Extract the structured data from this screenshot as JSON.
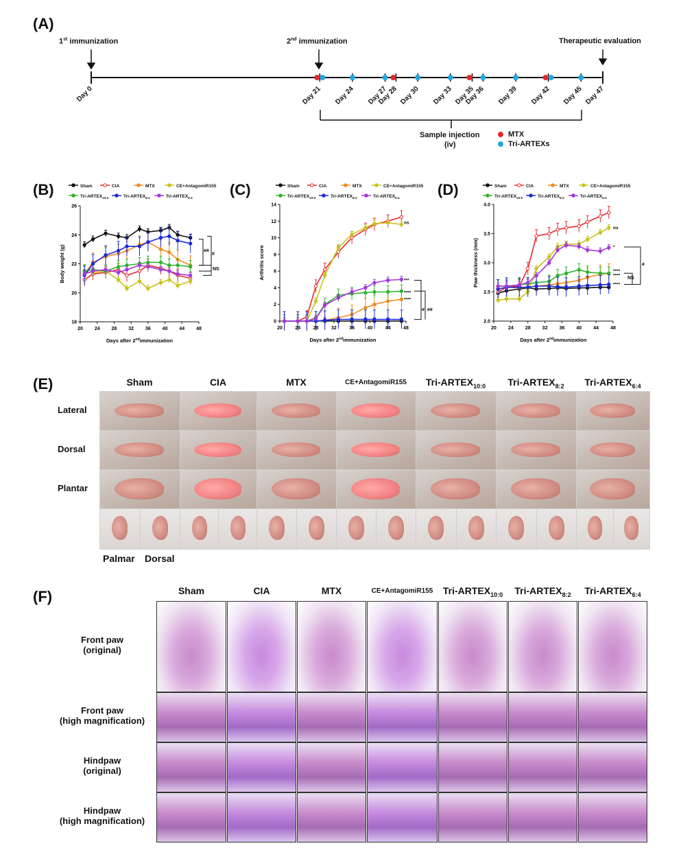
{
  "panels": {
    "a": "(A)",
    "b": "(B)",
    "c": "(C)",
    "d": "(D)",
    "e": "(E)",
    "f": "(F)"
  },
  "timeline": {
    "first_immunization_pre": "1",
    "first_immunization_sup": "st",
    "first_immunization_post": " immunization",
    "second_immunization_pre": "2",
    "second_immunization_sup": "nd",
    "second_immunization_post": " immunization",
    "therapeutic": "Therapeutic evaluation",
    "days": [
      "Day 0",
      "Day 21",
      "Day 24",
      "Day 27",
      "Day 28",
      "Day 30",
      "Day 33",
      "Day 35",
      "Day 36",
      "Day 39",
      "Day 42",
      "Day 45",
      "Day 47"
    ],
    "sample_injection": "Sample injection",
    "iv": "(iv)",
    "legend_mtx": "MTX",
    "legend_tri": "Tri-ARTEXs",
    "mtx_days": [
      21,
      28,
      35,
      42
    ],
    "tri_days": [
      21,
      24,
      27,
      30,
      33,
      36,
      39,
      42,
      45
    ],
    "colors": {
      "mtx": "#e8262b",
      "tri": "#1fa9e1"
    }
  },
  "legend_groups": [
    {
      "name": "Sham",
      "color": "#111111"
    },
    {
      "name": "CIA",
      "color": "#e8262b"
    },
    {
      "name": "MTX",
      "color": "#f28a21"
    },
    {
      "name": "CE+AntagomiR155",
      "color": "#c8c21e"
    },
    {
      "name": "Tri-ARTEX",
      "sub": "10:0",
      "color": "#2fb52f"
    },
    {
      "name": "Tri-ARTEX",
      "sub": "8:2",
      "color": "#1a2bd6"
    },
    {
      "name": "Tri-ARTEX",
      "sub": "6:4",
      "color": "#a537d8"
    }
  ],
  "chart_data": [
    {
      "type": "line",
      "panel": "B",
      "ylabel": "Body weight (g)",
      "xlabel_pre": "Days after 2",
      "xlabel_sup": "nd",
      "xlabel_post": "immunization",
      "xlim": [
        20,
        48
      ],
      "ylim": [
        18,
        26
      ],
      "xticks": [
        20,
        24,
        28,
        32,
        36,
        40,
        44,
        48
      ],
      "yticks": [
        18,
        20,
        22,
        24,
        26
      ],
      "x": [
        21,
        23,
        26,
        29,
        31,
        34,
        36,
        39,
        41,
        43,
        46
      ],
      "series": [
        {
          "name": "Sham",
          "values": [
            23.3,
            23.7,
            24.1,
            23.9,
            23.8,
            24.4,
            24.2,
            24.3,
            24.5,
            24.0,
            23.8
          ]
        },
        {
          "name": "CIA",
          "values": [
            20.9,
            21.3,
            21.4,
            21.6,
            21.2,
            21.5,
            21.9,
            21.7,
            21.5,
            21.2,
            21.0
          ]
        },
        {
          "name": "MTX",
          "values": [
            21.3,
            22.1,
            22.5,
            22.7,
            22.9,
            23.3,
            23.5,
            23.0,
            22.8,
            22.3,
            21.9
          ]
        },
        {
          "name": "CE+AntagomiR155",
          "values": [
            21.4,
            21.4,
            21.5,
            20.9,
            20.3,
            20.8,
            20.3,
            20.7,
            20.9,
            20.5,
            20.8
          ]
        },
        {
          "name": "Tri-ARTEX10:0",
          "values": [
            21.5,
            21.6,
            21.5,
            21.8,
            21.9,
            22.0,
            22.1,
            22.1,
            21.9,
            21.9,
            21.8
          ]
        },
        {
          "name": "Tri-ARTEX8:2",
          "values": [
            21.2,
            22.0,
            22.6,
            22.9,
            23.2,
            23.2,
            23.5,
            23.8,
            23.9,
            23.6,
            23.4
          ]
        },
        {
          "name": "Tri-ARTEX6:4",
          "values": [
            21.3,
            21.5,
            21.6,
            21.4,
            21.6,
            21.9,
            21.8,
            21.6,
            21.5,
            21.3,
            21.2
          ]
        }
      ],
      "annotations": [
        "##",
        "#",
        "NS"
      ]
    },
    {
      "type": "line",
      "panel": "C",
      "ylabel": "Arthritis score",
      "xlabel_pre": "Days after 2",
      "xlabel_sup": "nd",
      "xlabel_post": "immunization",
      "xlim": [
        20,
        48
      ],
      "ylim": [
        0,
        14
      ],
      "xticks": [
        20,
        24,
        28,
        32,
        36,
        40,
        44,
        48
      ],
      "yticks": [
        0,
        2,
        4,
        6,
        8,
        10,
        12,
        14
      ],
      "x": [
        21,
        24,
        26,
        28,
        30,
        33,
        36,
        39,
        41,
        44,
        47
      ],
      "series": [
        {
          "name": "Sham",
          "values": [
            0,
            0,
            0,
            0,
            0,
            0,
            0,
            0,
            0,
            0,
            0
          ]
        },
        {
          "name": "CIA",
          "values": [
            0,
            0,
            0.5,
            4.2,
            6.2,
            8.3,
            10.0,
            11.0,
            11.6,
            12.0,
            12.5
          ]
        },
        {
          "name": "MTX",
          "values": [
            0,
            0,
            0,
            0,
            0.1,
            0.4,
            0.8,
            1.6,
            2.0,
            2.4,
            2.6
          ]
        },
        {
          "name": "CE+AntagomiR155",
          "values": [
            0,
            0,
            0,
            2.4,
            5.5,
            8.8,
            10.4,
            11.2,
            11.7,
            11.8,
            11.6
          ]
        },
        {
          "name": "Tri-ARTEX10:0",
          "values": [
            0,
            0,
            0,
            0.4,
            2.0,
            3.1,
            3.3,
            3.4,
            3.5,
            3.5,
            3.6
          ]
        },
        {
          "name": "Tri-ARTEX8:2",
          "values": [
            0,
            0,
            0,
            0,
            0.1,
            0.2,
            0.2,
            0.2,
            0.2,
            0.2,
            0.2
          ]
        },
        {
          "name": "Tri-ARTEX6:4",
          "values": [
            0,
            0,
            0,
            0.3,
            1.9,
            2.8,
            3.5,
            4.0,
            4.6,
            4.9,
            5.0
          ]
        }
      ],
      "annotations": [
        "ns",
        "***",
        "****",
        "****",
        "#",
        "##"
      ]
    },
    {
      "type": "line",
      "panel": "D",
      "ylabel": "Paw thickness (mm)",
      "xlabel_pre": "Days after 2",
      "xlabel_sup": "nd",
      "xlabel_post": "immunization",
      "xlim": [
        20,
        48
      ],
      "ylim": [
        2.0,
        4.0
      ],
      "xticks": [
        20,
        24,
        28,
        32,
        36,
        40,
        44,
        48
      ],
      "yticks": [
        2.0,
        2.5,
        3.0,
        3.5,
        4.0
      ],
      "yticklabels": [
        "2.0",
        "2.5",
        "3.0",
        "3.5",
        "4.0"
      ],
      "x": [
        21,
        23,
        26,
        28,
        30,
        33,
        35,
        37,
        40,
        42,
        45,
        47
      ],
      "series": [
        {
          "name": "Sham",
          "values": [
            2.48,
            2.52,
            2.55,
            2.57,
            2.55,
            2.56,
            2.57,
            2.56,
            2.57,
            2.57,
            2.58,
            2.58
          ]
        },
        {
          "name": "CIA",
          "values": [
            2.5,
            2.58,
            2.6,
            2.9,
            3.46,
            3.5,
            3.57,
            3.6,
            3.63,
            3.7,
            3.8,
            3.86
          ]
        },
        {
          "name": "MTX",
          "values": [
            2.55,
            2.58,
            2.57,
            2.58,
            2.6,
            2.62,
            2.64,
            2.66,
            2.7,
            2.75,
            2.8,
            2.82
          ]
        },
        {
          "name": "CE+AntagomiR155",
          "values": [
            2.36,
            2.38,
            2.38,
            2.5,
            2.9,
            3.1,
            3.28,
            3.32,
            3.32,
            3.4,
            3.52,
            3.6
          ]
        },
        {
          "name": "Tri-ARTEX10:0",
          "values": [
            2.6,
            2.6,
            2.62,
            2.64,
            2.66,
            2.68,
            2.78,
            2.82,
            2.88,
            2.84,
            2.82,
            2.82
          ]
        },
        {
          "name": "Tri-ARTEX8:2",
          "values": [
            2.55,
            2.58,
            2.58,
            2.58,
            2.6,
            2.6,
            2.59,
            2.58,
            2.6,
            2.61,
            2.62,
            2.63
          ]
        },
        {
          "name": "Tri-ARTEX6:4",
          "values": [
            2.6,
            2.6,
            2.62,
            2.66,
            2.78,
            3.0,
            3.22,
            3.3,
            3.28,
            3.22,
            3.2,
            3.26
          ]
        }
      ],
      "annotations": [
        "ns",
        "*",
        "****",
        "****",
        "****",
        "#",
        "NS"
      ]
    }
  ],
  "panel_e": {
    "columns": [
      "Sham",
      "CIA",
      "MTX",
      "CE+AntagomiR155",
      "Tri-ARTEX",
      "Tri-ARTEX",
      "Tri-ARTEX"
    ],
    "column_subs": [
      "",
      "",
      "",
      "",
      "10:0",
      "8:2",
      "6:4"
    ],
    "rows": [
      "Lateral",
      "Dorsal",
      "Plantar"
    ],
    "bottom_labels": [
      "Palmar",
      "Dorsal"
    ]
  },
  "panel_f": {
    "columns": [
      "Sham",
      "CIA",
      "MTX",
      "CE+AntagomiR155",
      "Tri-ARTEX",
      "Tri-ARTEX",
      "Tri-ARTEX"
    ],
    "column_subs": [
      "",
      "",
      "",
      "",
      "10:0",
      "8:2",
      "6:4"
    ],
    "rows": [
      {
        "line1": "Front paw",
        "line2": "(original)"
      },
      {
        "line1": "Front paw",
        "line2": "(high magnification)"
      },
      {
        "line1": "Hindpaw",
        "line2": "(original)"
      },
      {
        "line1": "Hindpaw",
        "line2": "(high magnification)"
      }
    ]
  }
}
